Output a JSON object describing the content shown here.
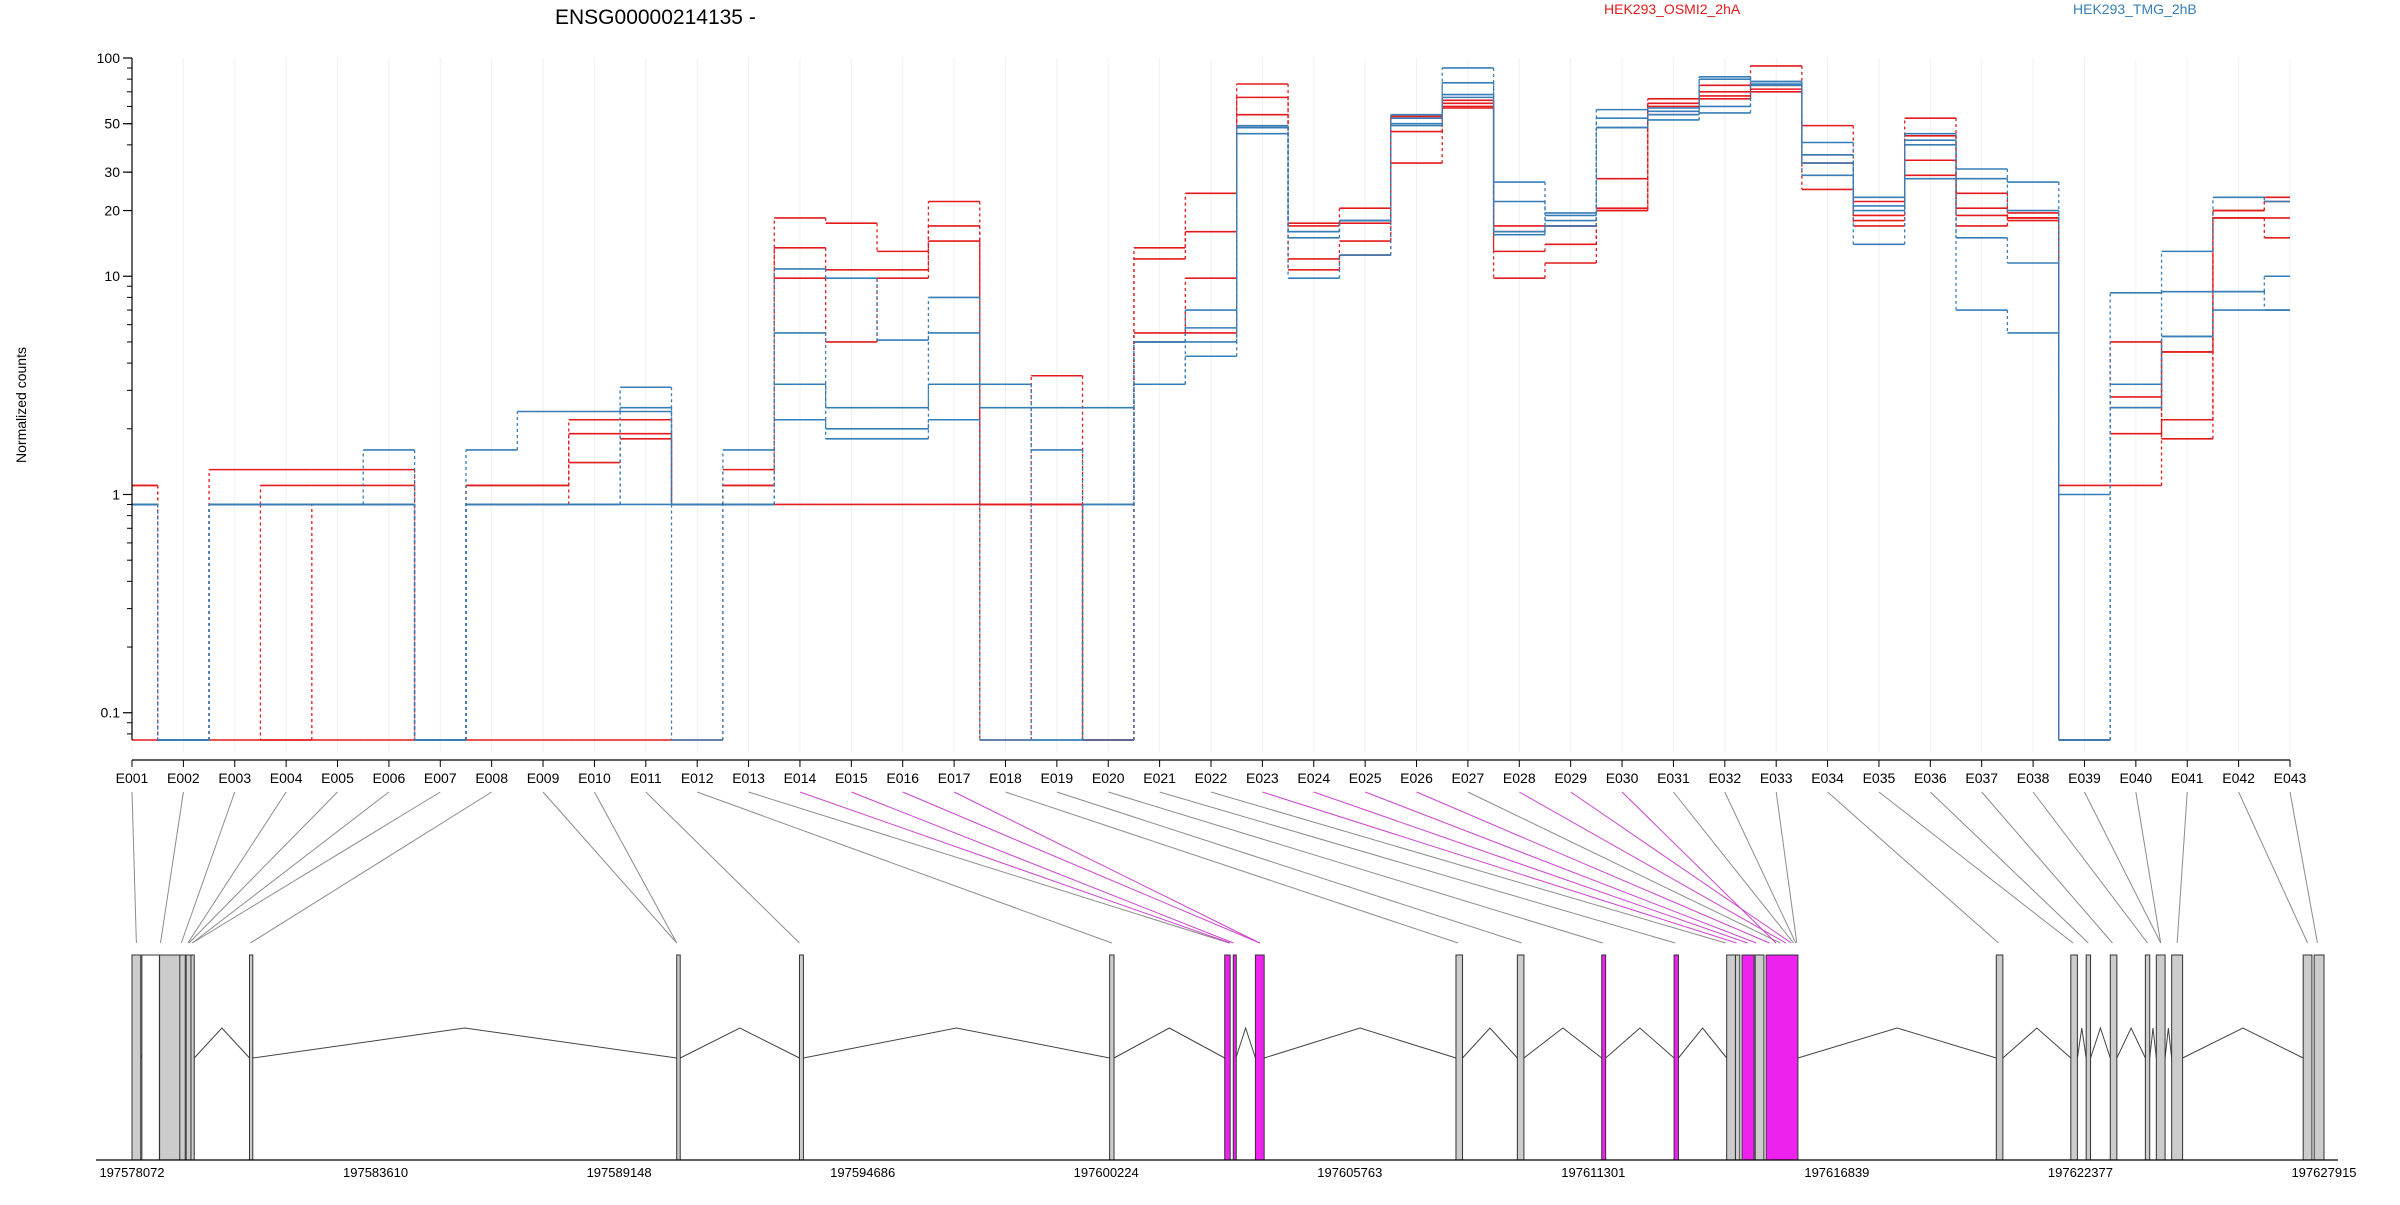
{
  "chart_data": {
    "type": "line",
    "title": "ENSG00000214135 -",
    "ylabel": "Normalized counts",
    "y_scale": "log",
    "ylim": [
      0.075,
      100
    ],
    "y_ticks": [
      0.1,
      1,
      10,
      20,
      30,
      50,
      100
    ],
    "y_tick_labels": [
      "0.1",
      "1",
      "10",
      "20",
      "30",
      "50",
      "100"
    ],
    "grid": true,
    "legend": [
      {
        "name": "HEK293_OSMI2_2hA",
        "color": "#e41a1c",
        "position": "top-center"
      },
      {
        "name": "HEK293_TMG_2hB",
        "color": "#377eb8",
        "position": "top-right"
      }
    ],
    "categories": [
      "E001",
      "E002",
      "E003",
      "E004",
      "E005",
      "E006",
      "E007",
      "E008",
      "E009",
      "E010",
      "E011",
      "E012",
      "E013",
      "E014",
      "E015",
      "E016",
      "E017",
      "E018",
      "E019",
      "E020",
      "E021",
      "E022",
      "E023",
      "E024",
      "E025",
      "E026",
      "E027",
      "E028",
      "E029",
      "E030",
      "E031",
      "E032",
      "E033",
      "E034",
      "E035",
      "E036",
      "E037",
      "E038",
      "E039",
      "E040",
      "E041",
      "E042",
      "E043"
    ],
    "series": [
      {
        "color": "#e41a1c",
        "values": [
          1.1,
          0.075,
          1.3,
          1.3,
          1.3,
          1.3,
          0.075,
          1.1,
          1.1,
          1.4,
          1.8,
          0.9,
          1.3,
          18.5,
          17.5,
          13,
          22,
          0.075,
          3.5,
          0.075,
          13.5,
          24,
          76,
          17.5,
          20.5,
          54,
          64,
          17,
          17,
          28,
          65,
          75,
          92,
          49,
          22,
          53,
          24,
          19.5,
          1.1,
          1.1,
          2.2,
          20,
          23
        ]
      },
      {
        "color": "#e41a1c",
        "values": [
          1.1,
          0.075,
          0.9,
          1.1,
          1.1,
          1.1,
          0.075,
          1.1,
          1.1,
          2.2,
          2.2,
          0.9,
          1.1,
          13.5,
          10.7,
          10.7,
          17,
          0.9,
          0.9,
          0.075,
          12,
          16,
          66,
          12,
          14.5,
          46,
          62,
          13,
          14,
          20.5,
          62,
          70,
          75,
          36,
          19,
          34,
          20.5,
          18.5,
          0.075,
          5,
          1.8,
          18.5,
          18.5
        ]
      },
      {
        "color": "#e41a1c",
        "values": [
          0.9,
          0.075,
          0.9,
          0.075,
          0.9,
          0.9,
          0.075,
          0.9,
          0.9,
          1.9,
          1.9,
          0.9,
          1.1,
          9.8,
          5,
          9.8,
          14.5,
          0.9,
          0.9,
          0.075,
          5.5,
          9.8,
          55,
          10.7,
          12.5,
          33,
          60,
          9.8,
          11.5,
          20,
          55,
          65,
          70,
          25,
          17,
          29,
          17,
          18.5,
          0.075,
          2.8,
          4.5,
          18.5,
          15
        ]
      },
      {
        "color": "#e41a1c",
        "values": [
          0.075,
          0.075,
          0.075,
          0.075,
          0.075,
          0.075,
          0.075,
          0.075,
          0.075,
          0.075,
          0.075,
          0.075,
          0.9,
          0.9,
          0.9,
          0.9,
          0.9,
          0.9,
          0.9,
          0.075,
          5,
          5.5,
          48,
          17,
          17.5,
          53,
          59,
          16,
          17,
          20,
          60,
          67,
          72,
          33,
          18,
          44,
          19,
          18,
          0.075,
          1.9,
          4.5,
          20,
          22
        ]
      },
      {
        "color": "#377eb8",
        "values": [
          0.9,
          0.075,
          0.9,
          0.9,
          0.9,
          1.6,
          0.075,
          1.6,
          2.4,
          2.4,
          3.1,
          0.9,
          1.6,
          10.8,
          9.8,
          5.1,
          8,
          3.2,
          2.5,
          2.5,
          5,
          5.8,
          49,
          16,
          18,
          50,
          90,
          27,
          18,
          58,
          59,
          82,
          78,
          41,
          23,
          45,
          31,
          27,
          1.0,
          8.4,
          13,
          23,
          22
        ]
      },
      {
        "color": "#377eb8",
        "values": [
          0.9,
          0.075,
          0.9,
          0.9,
          0.9,
          0.9,
          0.075,
          0.9,
          0.9,
          0.9,
          2.5,
          0.9,
          0.9,
          3.2,
          2.5,
          2.5,
          3.2,
          3.2,
          0.075,
          0.9,
          3.2,
          5,
          45,
          9.8,
          12.5,
          55,
          77,
          22,
          19.5,
          48,
          55,
          56,
          76,
          29,
          14,
          28,
          28,
          20,
          0.075,
          3.2,
          8.5,
          8.5,
          10
        ]
      },
      {
        "color": "#377eb8",
        "values": [
          0.9,
          0.075,
          0.9,
          0.9,
          0.9,
          0.9,
          0.075,
          0.9,
          0.9,
          0.9,
          2.4,
          0.9,
          0.9,
          5.5,
          2.0,
          2.0,
          5.5,
          2.5,
          1.6,
          0.075,
          3.2,
          4.3,
          48,
          15,
          18,
          49,
          66,
          15.5,
          17,
          48,
          52,
          60,
          75,
          36,
          20,
          42,
          15,
          11.5,
          0.075,
          2.5,
          5.3,
          8.5,
          7
        ]
      },
      {
        "color": "#377eb8",
        "values": [
          0.9,
          0.075,
          0.9,
          0.9,
          0.9,
          0.9,
          0.075,
          0.9,
          0.9,
          0.9,
          0.9,
          0.075,
          0.9,
          2.2,
          1.8,
          1.8,
          2.2,
          0.075,
          0.075,
          0.9,
          5,
          7,
          48,
          16,
          18,
          53,
          68,
          16,
          19,
          53,
          57,
          80,
          78,
          33,
          21,
          40,
          7,
          5.5,
          0.075,
          2.5,
          5.3,
          7,
          7
        ]
      }
    ],
    "gene_model": {
      "coordinate_labels": [
        "197578072",
        "197583610",
        "197589148",
        "197594686",
        "197600224",
        "197605763",
        "197611301",
        "197616839",
        "197622377",
        "197627915"
      ],
      "exon_fill": "#cccccc",
      "highlight_color": "#ee22ee"
    }
  }
}
